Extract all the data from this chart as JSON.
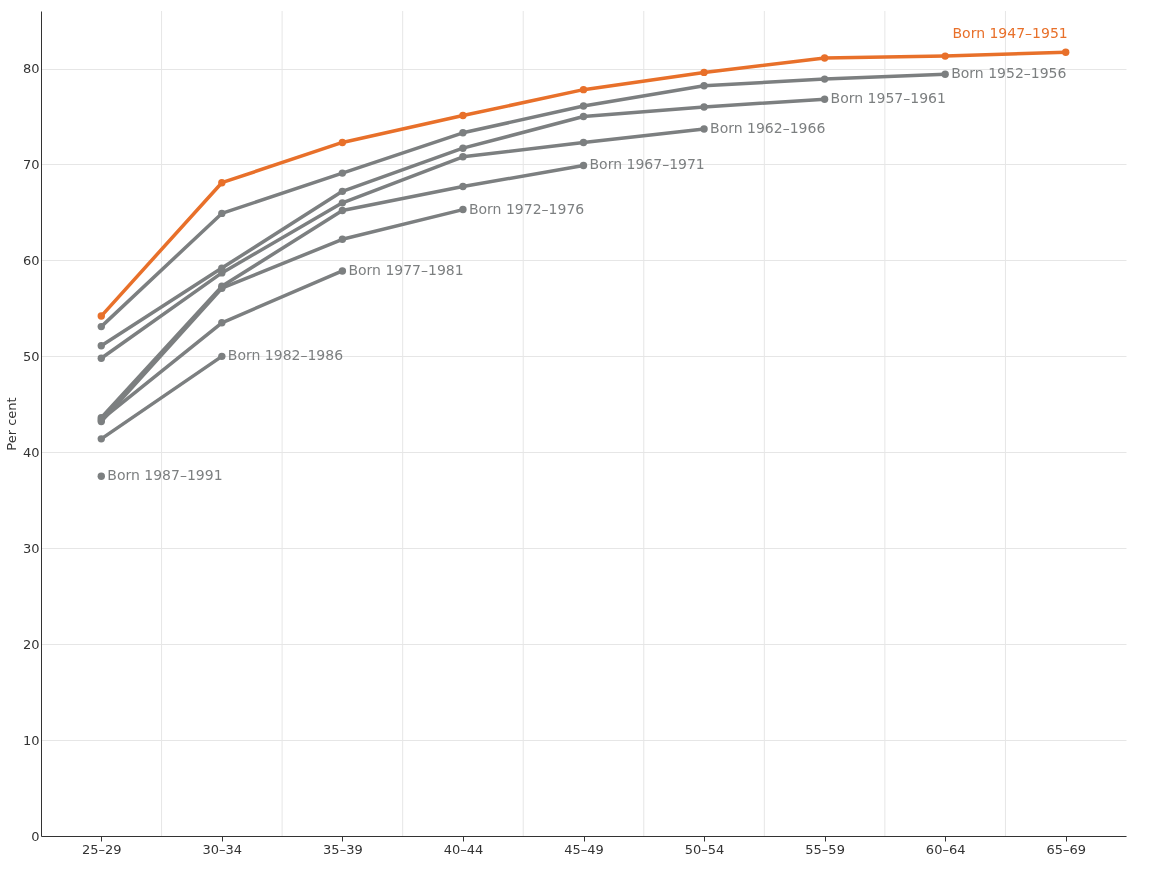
{
  "chart_data": {
    "type": "line",
    "ylabel": "Per cent",
    "categories": [
      "25–29",
      "30–34",
      "35–39",
      "40–44",
      "45–49",
      "50–54",
      "55–59",
      "60–64",
      "65–69"
    ],
    "ylim": [
      0,
      86
    ],
    "yticks": [
      0,
      10,
      20,
      30,
      40,
      50,
      60,
      70,
      80
    ],
    "grid": true,
    "marker": "circle",
    "line_style": "solid",
    "legend": false,
    "series": [
      {
        "name": "Born 1947–1951",
        "color": "#e8702a",
        "values": [
          54.2,
          68.1,
          72.3,
          75.1,
          77.8,
          79.6,
          81.1,
          81.3,
          81.7
        ]
      },
      {
        "name": "Born 1952–1956",
        "color": "#7c7f80",
        "values": [
          53.1,
          64.9,
          69.1,
          73.3,
          76.1,
          78.2,
          78.9,
          79.4,
          null
        ]
      },
      {
        "name": "Born 1957–1961",
        "color": "#7c7f80",
        "values": [
          51.1,
          59.2,
          67.2,
          71.7,
          75.0,
          76.0,
          76.8,
          null,
          null
        ]
      },
      {
        "name": "Born 1962–1966",
        "color": "#7c7f80",
        "values": [
          49.8,
          58.7,
          66.0,
          70.8,
          72.3,
          73.7,
          null,
          null,
          null
        ]
      },
      {
        "name": "Born 1967–1971",
        "color": "#7c7f80",
        "values": [
          43.6,
          57.3,
          65.2,
          67.7,
          69.9,
          null,
          null,
          null,
          null
        ]
      },
      {
        "name": "Born 1972–1976",
        "color": "#7c7f80",
        "values": [
          43.2,
          57.1,
          62.2,
          65.3,
          null,
          null,
          null,
          null,
          null
        ]
      },
      {
        "name": "Born 1977–1981",
        "color": "#7c7f80",
        "values": [
          43.4,
          53.5,
          58.9,
          null,
          null,
          null,
          null,
          null,
          null
        ]
      },
      {
        "name": "Born 1982–1986",
        "color": "#7c7f80",
        "values": [
          41.4,
          50.0,
          null,
          null,
          null,
          null,
          null,
          null,
          null
        ]
      },
      {
        "name": "Born 1987–1991",
        "color": "#7c7f80",
        "values": [
          37.5,
          null,
          null,
          null,
          null,
          null,
          null,
          null,
          null
        ]
      }
    ]
  }
}
